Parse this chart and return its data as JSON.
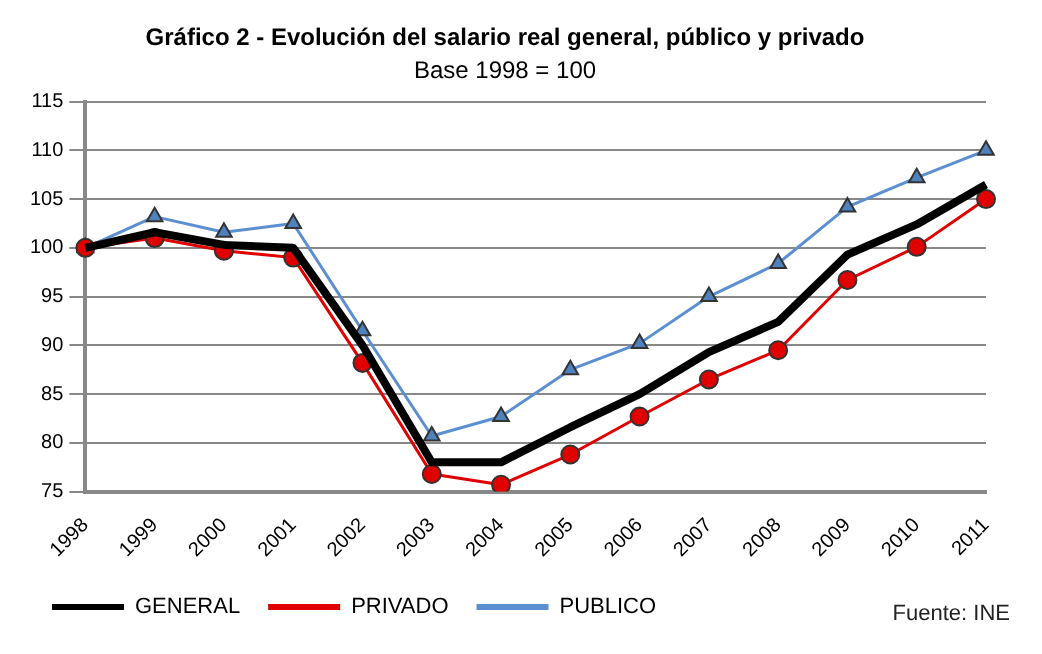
{
  "chart_data": {
    "type": "line",
    "title": "Gráfico 2 - Evolución del salario real general, público y privado",
    "subtitle": "Base 1998 = 100",
    "categories": [
      "1998",
      "1999",
      "2000",
      "2001",
      "2002",
      "2003",
      "2004",
      "2005",
      "2006",
      "2007",
      "2008",
      "2009",
      "2010",
      "2011"
    ],
    "series": [
      {
        "name": "GENERAL",
        "color": "#000000",
        "marker": "none",
        "values": [
          100,
          101.6,
          100.3,
          100,
          90,
          78,
          78,
          81.6,
          85,
          89.3,
          92.4,
          99.3,
          102.4,
          106.5
        ]
      },
      {
        "name": "PRIVADO",
        "color": "#e00000",
        "marker": "circle",
        "values": [
          100,
          101,
          99.7,
          99,
          88.2,
          76.8,
          75.7,
          78.8,
          82.7,
          86.5,
          89.5,
          96.7,
          100.1,
          105
        ]
      },
      {
        "name": "PUBLICO",
        "color": "#5b8fd0",
        "marker": "triangle",
        "values": [
          100,
          103.2,
          101.6,
          102.5,
          91.5,
          80.7,
          82.7,
          87.5,
          90.2,
          95,
          98.4,
          104.2,
          107.2,
          110
        ]
      }
    ],
    "ylim": [
      75,
      115
    ],
    "yticks": [
      75,
      80,
      85,
      90,
      95,
      100,
      105,
      110,
      115
    ],
    "grid": "y",
    "legend": "bottom",
    "annotations": [
      "Fuente: INE"
    ]
  }
}
